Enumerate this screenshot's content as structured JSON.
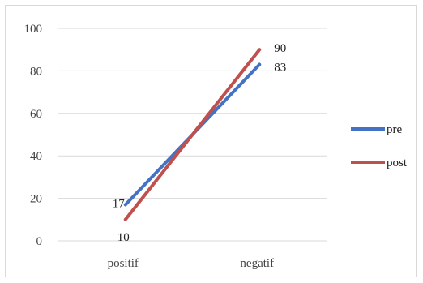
{
  "chart_data": {
    "type": "line",
    "categories": [
      "positif",
      "negatif"
    ],
    "ylim": [
      0,
      100
    ],
    "yticks": [
      0,
      20,
      40,
      60,
      80,
      100
    ],
    "grid": true,
    "legend_position": "right",
    "series": [
      {
        "name": "pre",
        "values": [
          17,
          83
        ],
        "color": "#4472C4"
      },
      {
        "name": "post",
        "values": [
          10,
          90
        ],
        "color": "#C0504D"
      }
    ]
  }
}
